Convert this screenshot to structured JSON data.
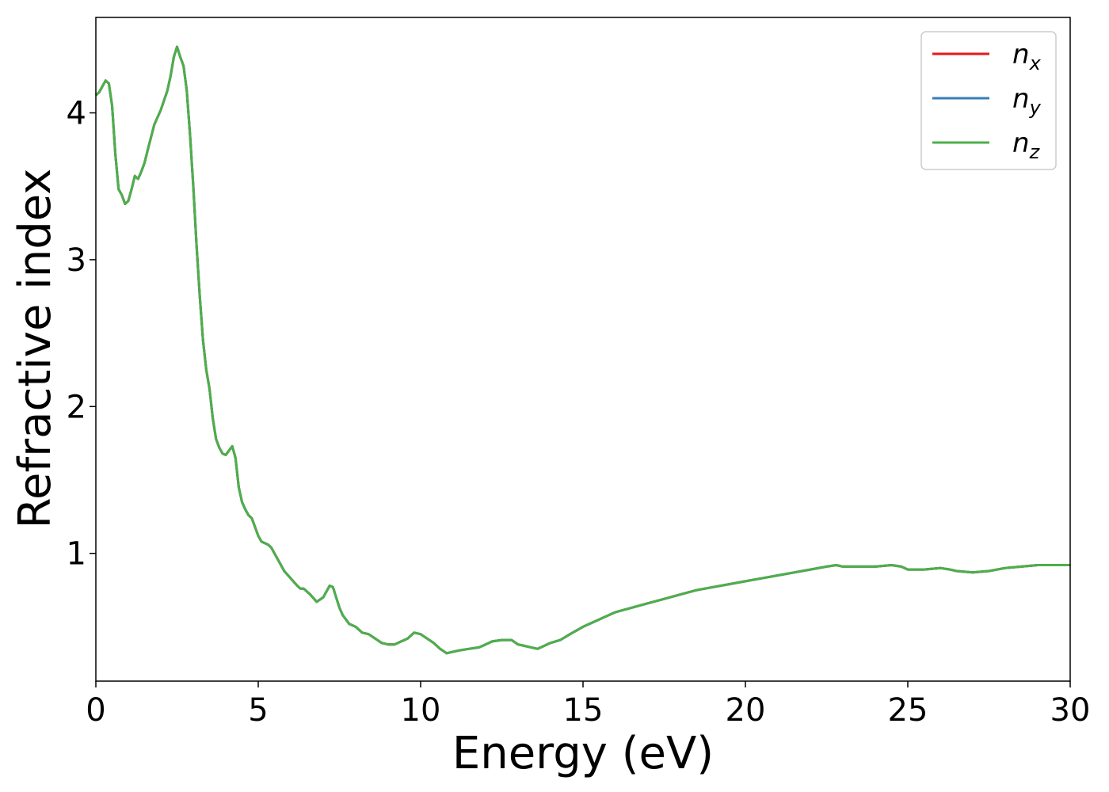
{
  "chart_data": {
    "type": "line",
    "xlabel": "Energy (eV)",
    "ylabel": "Refractive index",
    "xlim": [
      0,
      30
    ],
    "ylim": [
      0.13,
      4.65
    ],
    "xticks": [
      0,
      5,
      10,
      15,
      20,
      25,
      30
    ],
    "xtick_labels": [
      "0",
      "5",
      "10",
      "15",
      "20",
      "25",
      "30"
    ],
    "yticks": [
      1,
      2,
      3,
      4
    ],
    "ytick_labels": [
      "1",
      "2",
      "3",
      "4"
    ],
    "grid": false,
    "legend_position": "top-right",
    "series": [
      {
        "name": "n",
        "subscript": "x",
        "color": "#e41a1c",
        "values_same_as": "z"
      },
      {
        "name": "n",
        "subscript": "y",
        "color": "#377eb8",
        "values_same_as": "z"
      },
      {
        "name": "n",
        "subscript": "z",
        "color": "#4daf4a",
        "x": [
          0,
          0.1,
          0.2,
          0.3,
          0.4,
          0.5,
          0.6,
          0.7,
          0.8,
          0.9,
          1.0,
          1.1,
          1.2,
          1.3,
          1.4,
          1.5,
          1.6,
          1.8,
          2.0,
          2.2,
          2.3,
          2.4,
          2.5,
          2.6,
          2.7,
          2.8,
          2.9,
          3.0,
          3.1,
          3.2,
          3.3,
          3.4,
          3.5,
          3.6,
          3.7,
          3.8,
          3.9,
          4.0,
          4.1,
          4.2,
          4.3,
          4.4,
          4.5,
          4.6,
          4.7,
          4.8,
          4.9,
          5.0,
          5.1,
          5.2,
          5.3,
          5.4,
          5.5,
          5.6,
          5.7,
          5.8,
          6.0,
          6.2,
          6.3,
          6.4,
          6.6,
          6.8,
          7.0,
          7.1,
          7.2,
          7.3,
          7.4,
          7.5,
          7.6,
          7.8,
          8.0,
          8.2,
          8.4,
          8.6,
          8.8,
          9.0,
          9.2,
          9.4,
          9.6,
          9.8,
          10.0,
          10.2,
          10.4,
          10.6,
          10.8,
          11.0,
          11.2,
          11.5,
          11.8,
          12.0,
          12.2,
          12.5,
          12.8,
          13.0,
          13.2,
          13.4,
          13.6,
          13.8,
          14.0,
          14.3,
          14.6,
          15.0,
          15.5,
          16.0,
          16.5,
          17.0,
          17.5,
          18.0,
          18.5,
          19.0,
          19.5,
          20.0,
          20.5,
          21.0,
          21.5,
          22.0,
          22.5,
          22.8,
          23.0,
          23.5,
          24.0,
          24.5,
          24.8,
          25.0,
          25.5,
          26.0,
          26.3,
          26.5,
          27.0,
          27.5,
          28.0,
          28.5,
          29.0,
          29.5,
          30.0
        ],
        "y": [
          4.12,
          4.14,
          4.18,
          4.22,
          4.2,
          4.05,
          3.72,
          3.48,
          3.44,
          3.38,
          3.4,
          3.48,
          3.57,
          3.55,
          3.6,
          3.66,
          3.75,
          3.92,
          4.02,
          4.15,
          4.25,
          4.38,
          4.45,
          4.38,
          4.32,
          4.15,
          3.85,
          3.5,
          3.1,
          2.75,
          2.45,
          2.25,
          2.12,
          1.92,
          1.78,
          1.72,
          1.68,
          1.67,
          1.7,
          1.73,
          1.65,
          1.45,
          1.35,
          1.3,
          1.26,
          1.24,
          1.18,
          1.12,
          1.08,
          1.07,
          1.06,
          1.04,
          1.0,
          0.96,
          0.92,
          0.88,
          0.83,
          0.78,
          0.76,
          0.76,
          0.72,
          0.67,
          0.7,
          0.74,
          0.78,
          0.77,
          0.7,
          0.63,
          0.58,
          0.52,
          0.5,
          0.46,
          0.45,
          0.42,
          0.39,
          0.38,
          0.38,
          0.4,
          0.42,
          0.46,
          0.45,
          0.42,
          0.39,
          0.35,
          0.32,
          0.33,
          0.34,
          0.35,
          0.36,
          0.38,
          0.4,
          0.41,
          0.41,
          0.38,
          0.37,
          0.36,
          0.35,
          0.37,
          0.39,
          0.41,
          0.45,
          0.5,
          0.55,
          0.6,
          0.63,
          0.66,
          0.69,
          0.72,
          0.75,
          0.77,
          0.79,
          0.81,
          0.83,
          0.85,
          0.87,
          0.89,
          0.91,
          0.92,
          0.91,
          0.91,
          0.91,
          0.92,
          0.91,
          0.89,
          0.89,
          0.9,
          0.89,
          0.88,
          0.87,
          0.88,
          0.9,
          0.91,
          0.92,
          0.92,
          0.92
        ]
      }
    ]
  }
}
